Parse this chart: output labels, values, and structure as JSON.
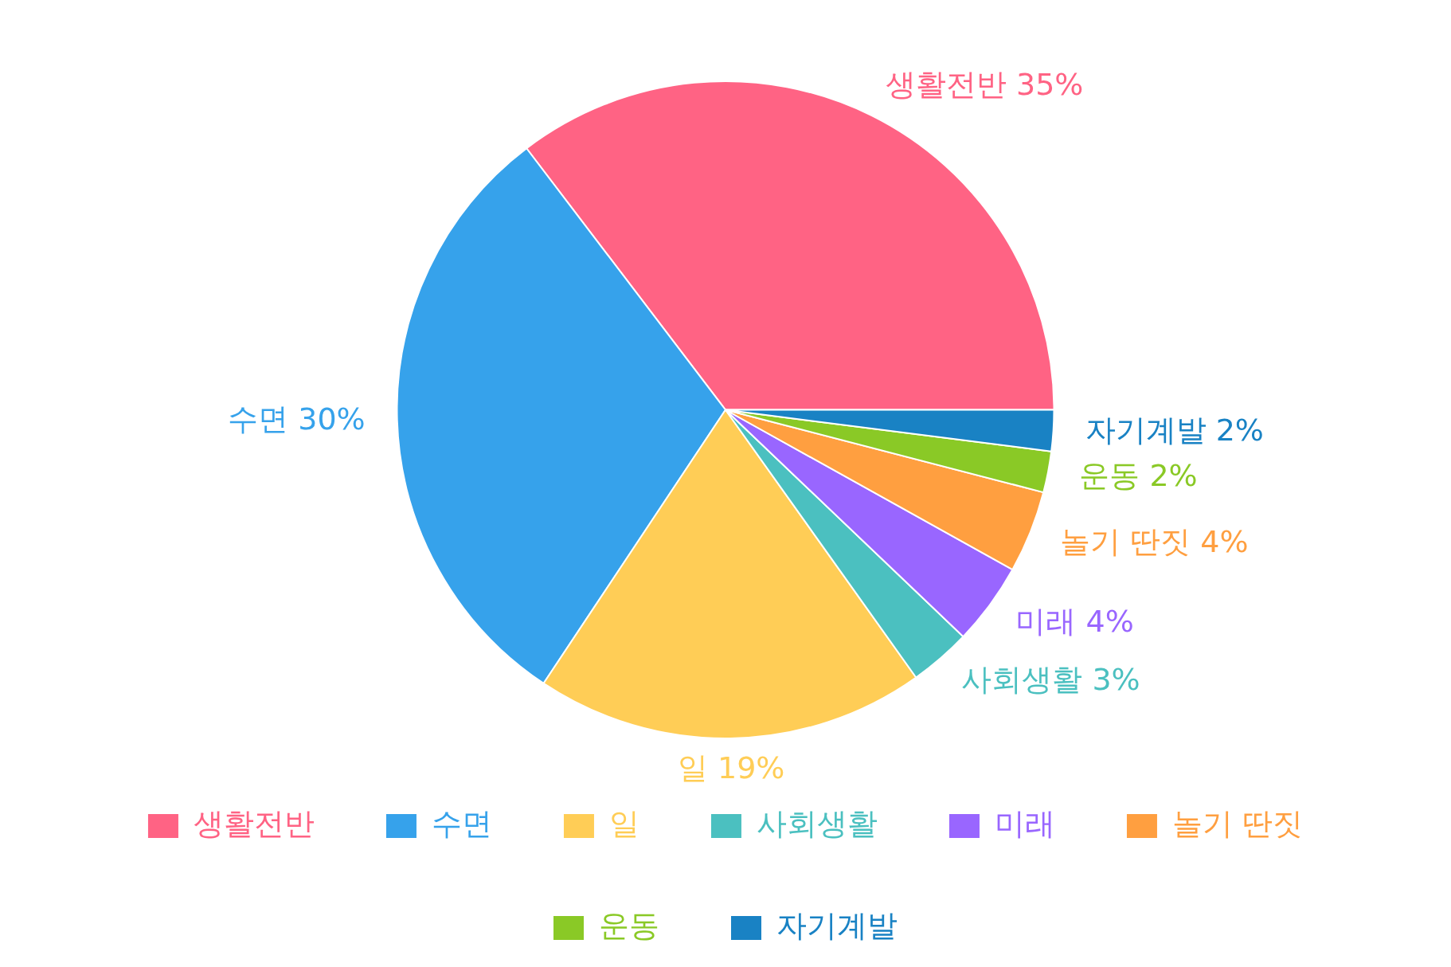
{
  "chart_data": {
    "type": "pie",
    "categories": [
      "생활전반",
      "수면",
      "일",
      "사회생활",
      "미래",
      "놀기 딴짓",
      "운동",
      "자기계발"
    ],
    "values": [
      35,
      30,
      19,
      3,
      4,
      4,
      2,
      2
    ],
    "colors": [
      "#ff6384",
      "#36a2eb",
      "#ffcd56",
      "#4bc0c0",
      "#9966ff",
      "#ff9f40",
      "#8ac926",
      "#1982c4"
    ],
    "value_labels": [
      "35%",
      "30%",
      "19%",
      "3%",
      "4%",
      "4%",
      "2%",
      "2%"
    ],
    "legend": "bottom"
  }
}
